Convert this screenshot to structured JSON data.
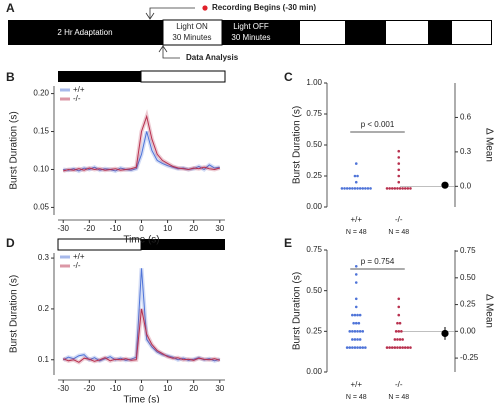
{
  "timeline": {
    "panel": "A",
    "adaptation": "2 Hr Adaptation",
    "light_on": [
      "Light ON",
      "30 Minutes"
    ],
    "light_off": [
      "Light OFF",
      "30 Minutes"
    ],
    "recording": "Recording Begins (-30 min)",
    "analysis": "Data Analysis"
  },
  "chart_data": [
    {
      "type": "line",
      "panel": "B",
      "xlabel": "Time (s)",
      "ylabel": "Burst Duration (s)",
      "x": [
        -30,
        -28,
        -26,
        -24,
        -22,
        -20,
        -18,
        -16,
        -14,
        -12,
        -10,
        -8,
        -6,
        -4,
        -2,
        0,
        2,
        4,
        6,
        8,
        10,
        12,
        14,
        16,
        18,
        20,
        22,
        24,
        26,
        28,
        30
      ],
      "series": [
        {
          "name": "+/+",
          "color": "#4f74d8",
          "values": [
            0.1,
            0.099,
            0.101,
            0.098,
            0.102,
            0.1,
            0.103,
            0.099,
            0.101,
            0.1,
            0.098,
            0.102,
            0.1,
            0.099,
            0.101,
            0.12,
            0.15,
            0.125,
            0.112,
            0.108,
            0.105,
            0.103,
            0.101,
            0.102,
            0.1,
            0.101,
            0.104,
            0.1,
            0.106,
            0.102,
            0.103
          ]
        },
        {
          "name": "-/-",
          "color": "#b8304e",
          "values": [
            0.098,
            0.1,
            0.099,
            0.101,
            0.099,
            0.102,
            0.1,
            0.101,
            0.099,
            0.1,
            0.101,
            0.099,
            0.1,
            0.101,
            0.103,
            0.15,
            0.17,
            0.14,
            0.12,
            0.112,
            0.108,
            0.104,
            0.102,
            0.101,
            0.1,
            0.102,
            0.101,
            0.103,
            0.101,
            0.1,
            0.102
          ]
        }
      ],
      "xlim": [
        -32,
        32
      ],
      "xticks": [
        -30,
        -20,
        -10,
        0,
        10,
        20,
        30
      ],
      "ylim": [
        0.04,
        0.21
      ],
      "yticks": [
        0.05,
        {
          "value": 0.1,
          "label": "0.10"
        },
        0.15,
        {
          "value": 0.2,
          "label": "0.20"
        }
      ]
    },
    {
      "type": "strip",
      "panel": "C",
      "ylabel": "Burst Duration (s)",
      "y2label": "Δ Mean",
      "categories": [
        "+/+",
        "-/-"
      ],
      "category_notes": [
        "N = 48",
        "N = 48"
      ],
      "series": [
        {
          "color": "#4f74d8",
          "values": [
            0.15,
            0.15,
            0.15,
            0.15,
            0.15,
            0.15,
            0.15,
            0.15,
            0.15,
            0.15,
            0.15,
            0.15,
            0.2,
            0.25,
            0.25,
            0.35
          ]
        },
        {
          "color": "#b8304e",
          "values": [
            0.15,
            0.15,
            0.15,
            0.15,
            0.15,
            0.15,
            0.15,
            0.15,
            0.15,
            0.15,
            0.2,
            0.25,
            0.3,
            0.35,
            0.4,
            0.45
          ]
        }
      ],
      "annotation": "p < 0.001",
      "mean_difference": 0.01,
      "ci": [
        0.0,
        0.03
      ],
      "ylim": [
        0,
        1
      ],
      "yticks": [
        {
          "value": 0,
          "label": "0.00"
        },
        0.25,
        {
          "value": 0.5,
          "label": "0.50"
        },
        0.75,
        {
          "value": 1,
          "label": "1.00"
        }
      ],
      "y2lim": [
        -0.18,
        0.9
      ],
      "y2ticks": [
        {
          "value": 0,
          "label": "0.0"
        },
        0.3,
        0.6
      ]
    },
    {
      "type": "line",
      "panel": "D",
      "xlabel": "Time (s)",
      "ylabel": "Burst Duration (s)",
      "x": [
        -30,
        -28,
        -26,
        -24,
        -22,
        -20,
        -18,
        -16,
        -14,
        -12,
        -10,
        -8,
        -6,
        -4,
        -2,
        0,
        2,
        4,
        6,
        8,
        10,
        12,
        14,
        16,
        18,
        20,
        22,
        24,
        26,
        28,
        30
      ],
      "series": [
        {
          "name": "+/+",
          "color": "#4f74d8",
          "values": [
            0.1,
            0.105,
            0.102,
            0.108,
            0.11,
            0.1,
            0.104,
            0.098,
            0.102,
            0.106,
            0.1,
            0.103,
            0.099,
            0.101,
            0.105,
            0.28,
            0.14,
            0.125,
            0.115,
            0.11,
            0.108,
            0.105,
            0.1,
            0.103,
            0.099,
            0.101,
            0.104,
            0.1,
            0.102,
            0.098,
            0.101
          ]
        },
        {
          "name": "-/-",
          "color": "#b8304e",
          "values": [
            0.102,
            0.098,
            0.1,
            0.095,
            0.103,
            0.101,
            0.097,
            0.1,
            0.104,
            0.098,
            0.101,
            0.1,
            0.102,
            0.099,
            0.1,
            0.2,
            0.15,
            0.13,
            0.118,
            0.112,
            0.106,
            0.103,
            0.104,
            0.1,
            0.101,
            0.099,
            0.103,
            0.101,
            0.1,
            0.102,
            0.099
          ]
        }
      ],
      "xlim": [
        -32,
        32
      ],
      "xticks": [
        -30,
        -20,
        -10,
        0,
        10,
        20,
        30
      ],
      "ylim": [
        0.07,
        0.31
      ],
      "yticks": [
        0.1,
        0.2,
        0.3
      ]
    },
    {
      "type": "strip",
      "panel": "E",
      "ylabel": "Burst Duration (s)",
      "y2label": "Δ Mean",
      "categories": [
        "+/+",
        "-/-"
      ],
      "category_notes": [
        "N = 48",
        "N = 48"
      ],
      "series": [
        {
          "color": "#4f74d8",
          "values": [
            0.15,
            0.15,
            0.15,
            0.15,
            0.15,
            0.15,
            0.15,
            0.15,
            0.2,
            0.2,
            0.2,
            0.2,
            0.25,
            0.25,
            0.25,
            0.25,
            0.25,
            0.25,
            0.3,
            0.3,
            0.3,
            0.35,
            0.35,
            0.35,
            0.35,
            0.4,
            0.45,
            0.55,
            0.6,
            0.65
          ]
        },
        {
          "color": "#b8304e",
          "values": [
            0.15,
            0.15,
            0.15,
            0.15,
            0.15,
            0.15,
            0.15,
            0.15,
            0.15,
            0.15,
            0.2,
            0.2,
            0.2,
            0.2,
            0.25,
            0.25,
            0.25,
            0.3,
            0.3,
            0.35,
            0.4,
            0.45
          ]
        }
      ],
      "annotation": "p = 0.754",
      "mean_difference": -0.02,
      "ci": [
        -0.08,
        0.04
      ],
      "ylim": [
        0,
        0.75
      ],
      "yticks": [
        {
          "value": 0,
          "label": "0.00"
        },
        0.25,
        {
          "value": 0.5,
          "label": "0.50"
        },
        0.75
      ],
      "y2lim": [
        -0.38,
        0.76
      ],
      "y2ticks": [
        -0.25,
        {
          "value": 0,
          "label": "0.00"
        },
        0.25,
        {
          "value": 0.5,
          "label": "0.50"
        },
        0.75
      ]
    }
  ]
}
